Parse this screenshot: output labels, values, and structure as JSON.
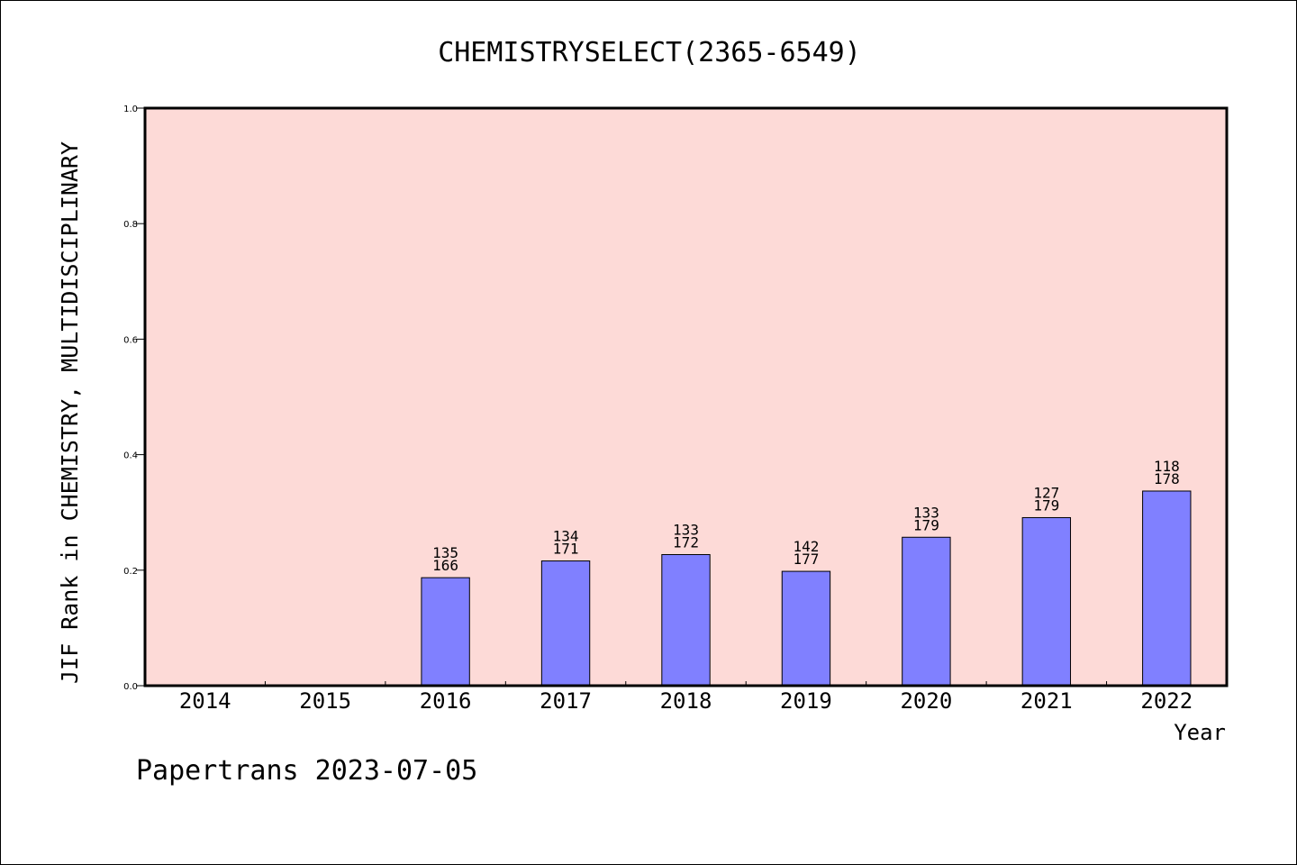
{
  "chart_data": {
    "type": "bar",
    "title": "CHEMISTRYSELECT(2365-6549)",
    "ylabel": "JIF Rank in CHEMISTRY, MULTIDISCIPLINARY",
    "xlabel": "Year",
    "ylim": [
      0,
      1.0
    ],
    "yticks": [
      "0.0",
      "0.2",
      "0.4",
      "0.6",
      "0.8",
      "1.0"
    ],
    "categories": [
      "2014",
      "2015",
      "2016",
      "2017",
      "2018",
      "2019",
      "2020",
      "2021",
      "2022"
    ],
    "values": [
      null,
      null,
      0.187,
      0.216,
      0.227,
      0.198,
      0.257,
      0.291,
      0.337
    ],
    "bar_labels": [
      null,
      null,
      {
        "rank": "135",
        "total": "166"
      },
      {
        "rank": "134",
        "total": "171"
      },
      {
        "rank": "133",
        "total": "172"
      },
      {
        "rank": "142",
        "total": "177"
      },
      {
        "rank": "133",
        "total": "179"
      },
      {
        "rank": "127",
        "total": "179"
      },
      {
        "rank": "118",
        "total": "178"
      }
    ],
    "grid": false,
    "colors": {
      "plot_background": "#fddad7",
      "bar_fill": "#8080ff",
      "bar_edge": "#000000"
    }
  },
  "footer": "Papertrans 2023-07-05"
}
